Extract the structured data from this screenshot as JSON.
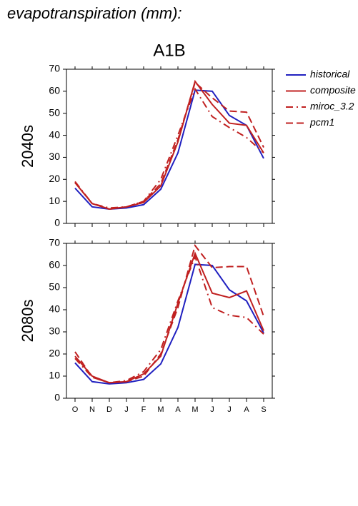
{
  "header": {
    "title": "evapotranspiration (mm):",
    "scenario": "A1B"
  },
  "chart_data": [
    {
      "type": "line",
      "ylabel": "2040s",
      "ylim": [
        0,
        70
      ],
      "yticks": [
        0,
        10,
        20,
        30,
        40,
        50,
        60,
        70
      ],
      "series": [
        {
          "name": "historical",
          "color": "#2020c0",
          "dash": "solid",
          "values": [
            16,
            7.5,
            6.5,
            7,
            8.5,
            15.5,
            32,
            60.5,
            60,
            49,
            44.5,
            29.5
          ]
        },
        {
          "name": "composite",
          "color": "#c02020",
          "dash": "solid",
          "values": [
            18.5,
            9,
            6.5,
            7.5,
            9.5,
            17,
            37,
            64.5,
            54,
            45.5,
            44.5,
            32
          ]
        },
        {
          "name": "miroc_3.2",
          "color": "#c02020",
          "dash": "dashdot",
          "values": [
            19,
            9,
            7,
            7.5,
            10,
            20,
            40,
            61,
            48.5,
            43.5,
            39,
            32
          ]
        },
        {
          "name": "pcm1",
          "color": "#c02020",
          "dash": "dashed",
          "values": [
            18.5,
            9,
            6.5,
            7.5,
            10,
            18,
            38,
            64,
            57,
            51,
            50.5,
            34.5
          ]
        }
      ]
    },
    {
      "type": "line",
      "ylabel": "2080s",
      "ylim": [
        0,
        70
      ],
      "yticks": [
        0,
        10,
        20,
        30,
        40,
        50,
        60,
        70
      ],
      "categories": [
        "O",
        "N",
        "D",
        "J",
        "F",
        "M",
        "A",
        "M",
        "J",
        "J",
        "A",
        "S"
      ],
      "series": [
        {
          "name": "historical",
          "color": "#2020c0",
          "dash": "solid",
          "values": [
            16,
            7.5,
            6.5,
            7,
            8.5,
            15.5,
            32,
            60.5,
            60,
            49,
            44,
            29.5
          ]
        },
        {
          "name": "composite",
          "color": "#c02020",
          "dash": "solid",
          "values": [
            19,
            10,
            7,
            7.5,
            11,
            19,
            43,
            65.5,
            47.5,
            45.5,
            48.5,
            30.5
          ]
        },
        {
          "name": "miroc_3.2",
          "color": "#c02020",
          "dash": "dashdot",
          "values": [
            18,
            9.5,
            7,
            8,
            12,
            22,
            44,
            64,
            41,
            37.5,
            36.5,
            29
          ]
        },
        {
          "name": "pcm1",
          "color": "#c02020",
          "dash": "dashed",
          "values": [
            21,
            9.5,
            7,
            7.5,
            10,
            20,
            41,
            69,
            59,
            59.5,
            59.5,
            37
          ]
        }
      ]
    }
  ]
}
